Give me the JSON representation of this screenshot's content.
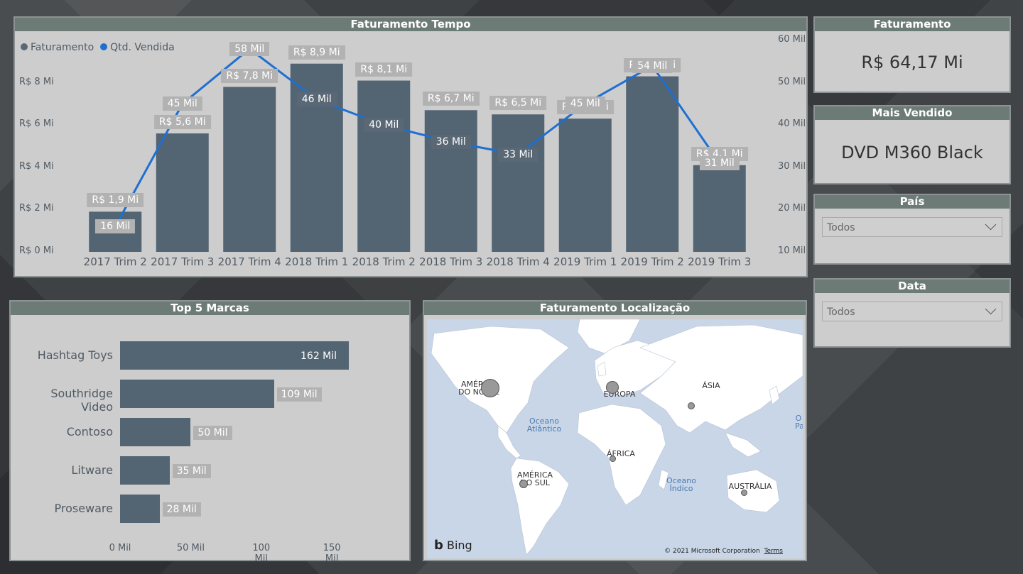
{
  "time_panel": {
    "title": "Faturamento Tempo",
    "legend": [
      {
        "label": "Faturamento",
        "color": "#5a6876"
      },
      {
        "label": "Qtd. Vendida",
        "color": "#1f6fd1"
      }
    ]
  },
  "chart_data": [
    {
      "type": "bar",
      "title": "Faturamento Tempo",
      "categories": [
        "2017 Trim 2",
        "2017 Trim 3",
        "2017 Trim 4",
        "2018 Trim 1",
        "2018 Trim 2",
        "2018 Trim 3",
        "2018 Trim 4",
        "2019 Trim 1",
        "2019 Trim 2",
        "2019 Trim 3"
      ],
      "series": [
        {
          "name": "Faturamento",
          "values": [
            1.9,
            5.6,
            7.8,
            8.9,
            8.1,
            6.7,
            6.5,
            6.3,
            8.3,
            4.1
          ],
          "labels": [
            "R$ 1,9 Mi",
            "R$ 5,6 Mi",
            "R$ 7,8 Mi",
            "R$ 8,9 Mi",
            "R$ 8,1 Mi",
            "R$ 6,7 Mi",
            "R$ 6,5 Mi",
            "R$ 6,3 Mi",
            "R$ 8,3 Mi",
            "R$ 4,1 Mi"
          ],
          "color": "#536473"
        },
        {
          "name": "Qtd. Vendida",
          "type": "line",
          "values": [
            16,
            45,
            58,
            46,
            40,
            36,
            33,
            45,
            54,
            31
          ],
          "labels": [
            "16 Mil",
            "45 Mil",
            "58 Mil",
            "46 Mil",
            "40 Mil",
            "36 Mil",
            "33 Mil",
            "45 Mil",
            "54 Mil",
            "31 Mil"
          ],
          "color": "#1f6fd1"
        }
      ],
      "y_left": {
        "ticks": [
          "R$ 0 Mi",
          "R$ 2 Mi",
          "R$ 4 Mi",
          "R$ 6 Mi",
          "R$ 8 Mi"
        ],
        "values": [
          0,
          2,
          4,
          6,
          8
        ],
        "range": [
          0,
          10.4
        ]
      },
      "y_right": {
        "ticks": [
          "10 Mil",
          "20 Mil",
          "30 Mil",
          "40 Mil",
          "50 Mil",
          "60 Mil"
        ],
        "values": [
          10,
          20,
          30,
          40,
          50,
          60
        ],
        "range": [
          10,
          62
        ]
      },
      "legend": "top-left",
      "grid": false
    },
    {
      "type": "bar",
      "orientation": "horizontal",
      "title": "Top 5 Marcas",
      "categories": [
        "Hashtag Toys",
        "Southridge Video",
        "Contoso",
        "Litware",
        "Proseware"
      ],
      "values": [
        162,
        109,
        50,
        35,
        28
      ],
      "labels": [
        "162 Mil",
        "109 Mil",
        "50 Mil",
        "35 Mil",
        "28 Mil"
      ],
      "x_ticks": [
        "0 Mil",
        "50 Mil",
        "100 Mil",
        "150 Mil"
      ],
      "x_tick_values": [
        0,
        50,
        100,
        150
      ],
      "xlim": [
        0,
        162
      ]
    }
  ],
  "cards": {
    "faturamento": {
      "title": "Faturamento",
      "value": "R$ 64,17 Mi"
    },
    "mais_vendido": {
      "title": "Mais Vendido",
      "value": "DVD M360 Black"
    }
  },
  "filters": {
    "pais": {
      "title": "País",
      "selected": "Todos"
    },
    "data": {
      "title": "Data",
      "selected": "Todos"
    }
  },
  "brands_panel": {
    "title": "Top 5 Marcas"
  },
  "map_panel": {
    "title": "Faturamento Localização",
    "continents": [
      {
        "label": "AMÉRICA DO NORTE"
      },
      {
        "label": "EUROPA"
      },
      {
        "label": "ÁSIA"
      },
      {
        "label": "ÁFRICA"
      },
      {
        "label": "AMÉRICA DO SUL"
      },
      {
        "label": "AUSTRÁLIA"
      }
    ],
    "oceans": [
      "Oceano Atlântico",
      "Oceano Índico",
      "O Pa"
    ],
    "brand": "Bing",
    "copyright": "© 2021 Microsoft Corporation",
    "terms": "Terms",
    "land_color": "#ffffff",
    "water_color": "#c8d6e8"
  }
}
